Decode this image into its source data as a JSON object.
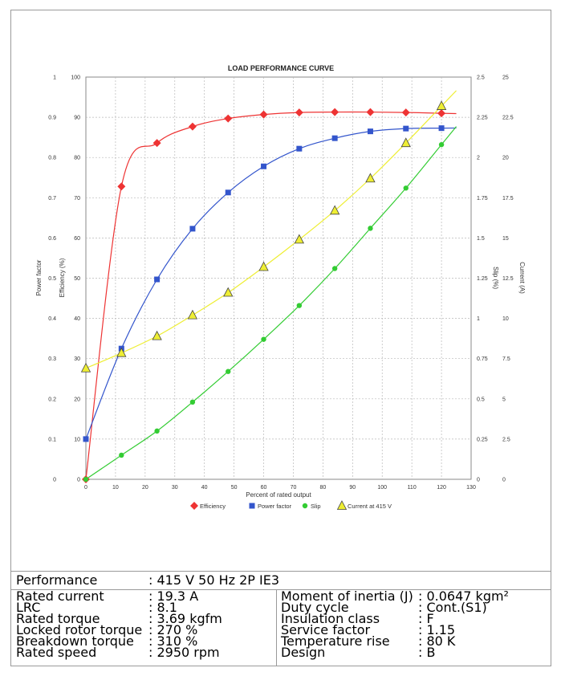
{
  "chart_data": {
    "type": "line",
    "title": "LOAD PERFORMANCE CURVE",
    "xlabel": "Percent of rated output",
    "xlim": [
      0,
      130
    ],
    "x_ticks": [
      "0",
      "10",
      "20",
      "30",
      "40",
      "50",
      "60",
      "70",
      "80",
      "90",
      "100",
      "110",
      "120",
      "130"
    ],
    "grid": true,
    "legend_position": "bottom",
    "axes": {
      "power_factor": {
        "label": "Power factor",
        "range": [
          0,
          1
        ],
        "ticks": [
          "0",
          "0.1",
          "0.2",
          "0.3",
          "0.4",
          "0.5",
          "0.6",
          "0.7",
          "0.8",
          "0.9",
          "1"
        ]
      },
      "efficiency": {
        "label": "Efficiency (%)",
        "range": [
          0,
          100
        ],
        "ticks": [
          "0",
          "10",
          "20",
          "30",
          "40",
          "50",
          "60",
          "70",
          "80",
          "90",
          "100"
        ]
      },
      "slip": {
        "label": "Slip (%)",
        "range": [
          0,
          2.5
        ],
        "ticks": [
          "0",
          "0.25",
          "0.5",
          "0.75",
          "1",
          "1.25",
          "1.5",
          "1.75",
          "2",
          "2.25",
          "2.5"
        ]
      },
      "current": {
        "label": "Current (A)",
        "range": [
          0,
          25
        ],
        "ticks": [
          "0",
          "2.5",
          "5",
          "7.5",
          "10",
          "12.5",
          "15",
          "17.5",
          "20",
          "22.5",
          "25"
        ]
      }
    },
    "x": [
      0,
      12,
      24,
      36,
      48,
      60,
      72,
      84,
      96,
      108,
      120
    ],
    "series": [
      {
        "name": "Efficiency",
        "axis": "efficiency",
        "color": "#ee3333",
        "marker": "diamond",
        "values": [
          0,
          72.8,
          83.6,
          87.7,
          89.7,
          90.7,
          91.2,
          91.3,
          91.3,
          91.2,
          91.0
        ]
      },
      {
        "name": "Power factor",
        "axis": "power_factor",
        "color": "#3355cc",
        "marker": "square",
        "values": [
          0.1,
          0.325,
          0.497,
          0.623,
          0.713,
          0.778,
          0.822,
          0.848,
          0.865,
          0.872,
          0.873
        ]
      },
      {
        "name": "Slip",
        "axis": "slip",
        "color": "#33cc33",
        "marker": "circle",
        "values": [
          0,
          0.15,
          0.3,
          0.48,
          0.67,
          0.87,
          1.08,
          1.31,
          1.56,
          1.81,
          2.08
        ]
      },
      {
        "name": "Current at 415 V",
        "axis": "current",
        "color": "#eeee33",
        "marker": "triangle",
        "values": [
          6.9,
          7.85,
          8.9,
          10.2,
          11.6,
          13.2,
          14.9,
          16.7,
          18.7,
          20.9,
          23.2
        ]
      }
    ]
  },
  "specs": {
    "performance_label": "Performance",
    "performance_value": ": 415 V 50 Hz 2P IE3",
    "left": [
      {
        "label": "Rated current",
        "value": ": 19.3 A"
      },
      {
        "label": "LRC",
        "value": ": 8.1"
      },
      {
        "label": "Rated torque",
        "value": ": 3.69 kgfm"
      },
      {
        "label": "Locked rotor torque",
        "value": ": 270 %"
      },
      {
        "label": "Breakdown torque",
        "value": ": 310 %"
      },
      {
        "label": "Rated speed",
        "value": ": 2950 rpm"
      }
    ],
    "right": [
      {
        "label": "Moment of inertia (J)",
        "value": ": 0.0647 kgm²"
      },
      {
        "label": "Duty cycle",
        "value": ": Cont.(S1)"
      },
      {
        "label": "Insulation class",
        "value": ": F"
      },
      {
        "label": "Service factor",
        "value": ": 1.15"
      },
      {
        "label": "Temperature rise",
        "value": ": 80 K"
      },
      {
        "label": "Design",
        "value": ": B"
      }
    ]
  }
}
